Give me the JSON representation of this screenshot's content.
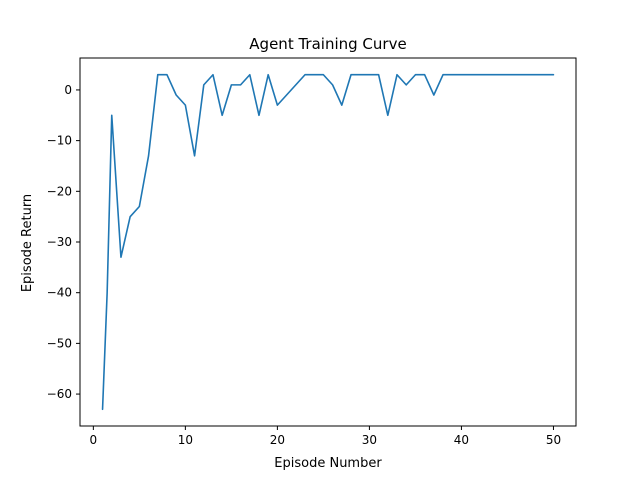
{
  "chart_data": {
    "type": "line",
    "title": "Agent Training Curve",
    "xlabel": "Episode Number",
    "ylabel": "Episode Return",
    "xlim": [
      -1.45,
      52.45
    ],
    "ylim": [
      -66.3,
      6.3
    ],
    "xticks": [
      0,
      10,
      20,
      30,
      40,
      50
    ],
    "yticks": [
      0,
      -10,
      -20,
      -30,
      -40,
      -50,
      -60
    ],
    "tick_labels": {
      "x": [
        "0",
        "10",
        "20",
        "30",
        "40",
        "50"
      ],
      "y": [
        "0",
        "−10",
        "−20",
        "−30",
        "−40",
        "−50",
        "−60"
      ]
    },
    "grid": false,
    "legend": "none",
    "series": [
      {
        "color": "#1f77b4",
        "x": [
          1,
          1.5,
          2,
          3,
          4,
          5,
          6,
          7,
          8,
          9,
          10,
          11,
          12,
          13,
          14,
          15,
          16,
          17,
          18,
          19,
          20,
          21,
          22,
          23,
          24,
          25,
          26,
          27,
          28,
          29,
          30,
          31,
          32,
          33,
          34,
          35,
          36,
          37,
          38,
          39,
          40,
          41,
          42,
          43,
          44,
          45,
          46,
          47,
          48,
          49,
          50
        ],
        "y": [
          -63,
          -40,
          -5,
          -33,
          -25,
          -23,
          -13,
          3,
          3,
          -1,
          -3,
          -13,
          1,
          3,
          -5,
          1,
          1,
          3,
          -5,
          3,
          -3,
          -1,
          1,
          3,
          3,
          3,
          1,
          -3,
          3,
          3,
          3,
          3,
          -5,
          3,
          1,
          3,
          3,
          -1,
          3,
          3,
          3,
          3,
          3,
          3,
          3,
          3,
          3,
          3,
          3,
          3,
          3
        ]
      }
    ]
  }
}
